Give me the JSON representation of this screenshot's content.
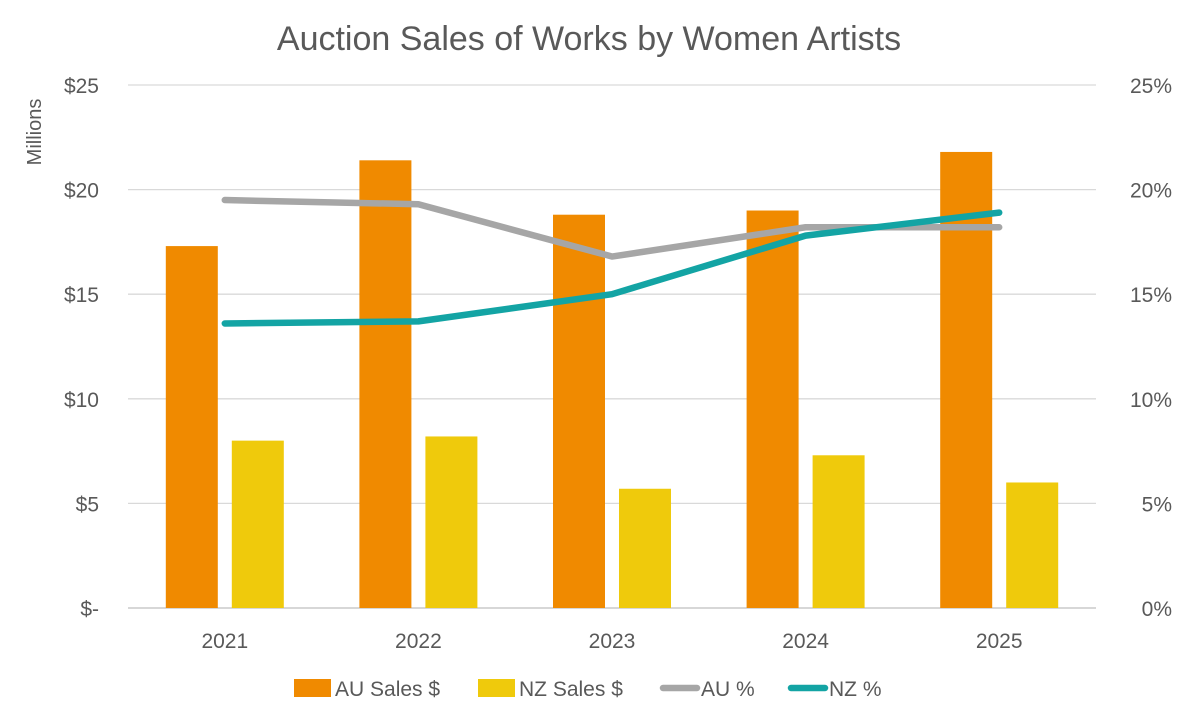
{
  "chart_data": {
    "type": "bar",
    "title": "Auction Sales of Works by Women Artists",
    "y_unit_label": "Millions",
    "categories": [
      "2021",
      "2022",
      "2023",
      "2024",
      "2025"
    ],
    "y_axis": {
      "ylim": [
        0,
        25
      ],
      "tick_values": [
        0,
        5,
        10,
        15,
        20,
        25
      ],
      "tick_labels": [
        "$-",
        "$5",
        "$10",
        "$15",
        "$20",
        "$25"
      ]
    },
    "y2_axis": {
      "ylim": [
        0,
        25
      ],
      "tick_values": [
        0,
        5,
        10,
        15,
        20,
        25
      ],
      "tick_labels": [
        "0%",
        "5%",
        "10%",
        "15%",
        "20%",
        "25%"
      ]
    },
    "grid": true,
    "legend_position": "bottom",
    "series": [
      {
        "name": "AU Sales $",
        "kind": "bar",
        "axis": "left",
        "color": "#F08A00",
        "values": [
          17.3,
          21.4,
          18.8,
          19.0,
          21.8
        ]
      },
      {
        "name": "NZ Sales $",
        "kind": "bar",
        "axis": "left",
        "color": "#EFCA0C",
        "values": [
          8.0,
          8.2,
          5.7,
          7.3,
          6.0
        ]
      },
      {
        "name": "AU %",
        "kind": "line",
        "axis": "right",
        "color": "#A6A6A6",
        "values": [
          19.5,
          19.3,
          16.8,
          18.2,
          18.2
        ]
      },
      {
        "name": "NZ %",
        "kind": "line",
        "axis": "right",
        "color": "#13A4A4",
        "values": [
          13.6,
          13.7,
          15.0,
          17.8,
          18.9
        ]
      }
    ]
  }
}
